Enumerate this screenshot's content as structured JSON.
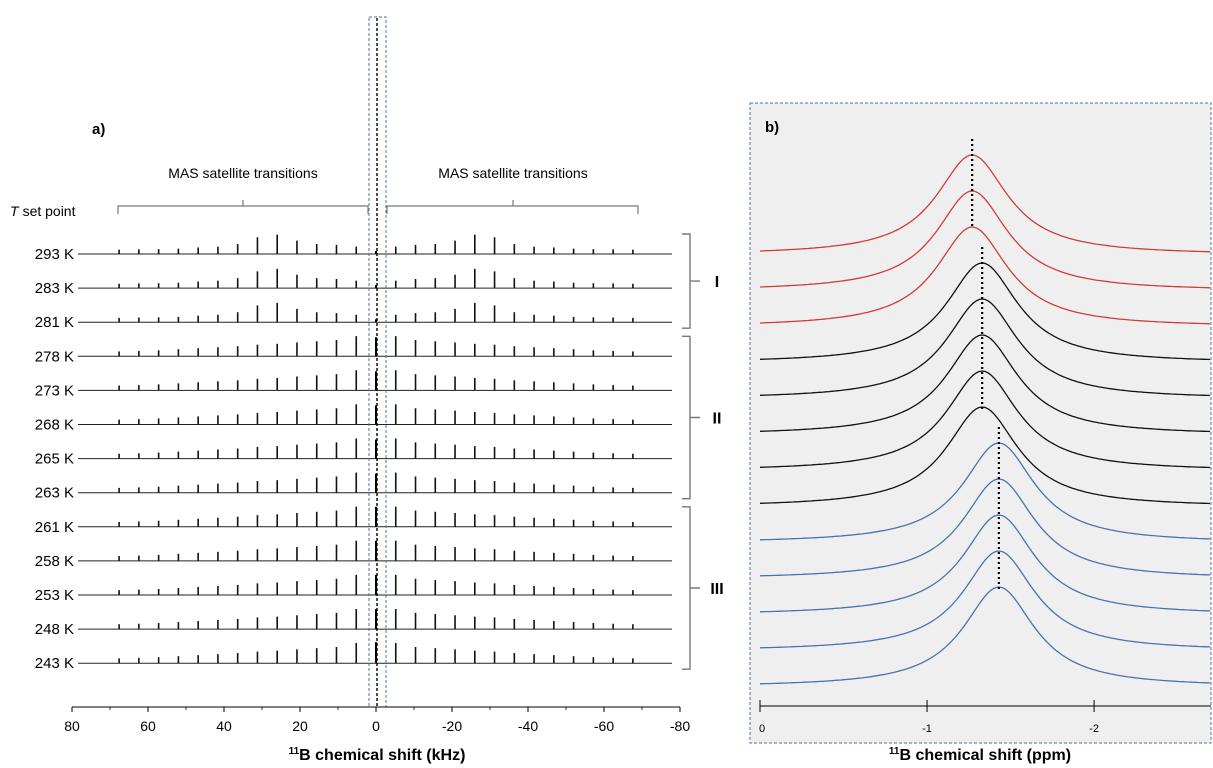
{
  "colors": {
    "group_I": "#d23b3b",
    "group_II": "#111111",
    "group_III": "#4a72b0",
    "panel_b_background": "#efefef",
    "highlight_box": "#4a74a8",
    "peak_guide": "#000000"
  },
  "chart_data": [
    {
      "panel": "a)",
      "type": "line",
      "subtype": "stacked NMR spectra",
      "row_header": "T set point",
      "xlabel_prefix": "11",
      "xlabel_main": "B chemical shift (kHz)",
      "xlim": [
        80,
        -80
      ],
      "xticks": [
        "80",
        "60",
        "40",
        "20",
        "0",
        "-20",
        "-40",
        "-60",
        "-80"
      ],
      "annotations": {
        "left_bracket": "MAS satellite transitions",
        "right_bracket": "MAS satellite transitions"
      },
      "temperatures": [
        "293 K",
        "283 K",
        "281 K",
        "278 K",
        "273 K",
        "268 K",
        "265 K",
        "263 K",
        "261 K",
        "258 K",
        "253 K",
        "248 K",
        "243 K"
      ],
      "regimes": [
        {
          "label": "I",
          "rows": [
            0,
            2
          ]
        },
        {
          "label": "II",
          "rows": [
            3,
            7
          ]
        },
        {
          "label": "III",
          "rows": [
            8,
            12
          ]
        }
      ],
      "sidebands_khz": [
        -67.6,
        -62.4,
        -57.2,
        -52.0,
        -46.8,
        -41.6,
        -36.4,
        -31.2,
        -26.0,
        -20.8,
        -15.6,
        -10.4,
        -5.2,
        5.2,
        10.4,
        15.6,
        20.8,
        26.0,
        31.2,
        36.4,
        41.6,
        46.8,
        52.0,
        57.2,
        62.4,
        67.6
      ],
      "relative_intensity_regime_I": [
        0.02,
        0.04,
        0.05,
        0.08,
        0.15,
        0.2,
        0.35,
        0.75,
        0.9,
        0.55,
        0.35,
        0.3,
        0.2,
        0.2,
        0.3,
        0.35,
        0.55,
        0.9,
        0.75,
        0.35,
        0.2,
        0.15,
        0.08,
        0.05,
        0.04,
        0.02
      ],
      "relative_intensity_regime_II_III": [
        0.05,
        0.08,
        0.12,
        0.18,
        0.24,
        0.3,
        0.36,
        0.45,
        0.5,
        0.58,
        0.65,
        0.72,
        0.95,
        0.95,
        0.72,
        0.65,
        0.58,
        0.5,
        0.45,
        0.36,
        0.3,
        0.24,
        0.18,
        0.12,
        0.08,
        0.05
      ],
      "center_peak_intensity": [
        0.05,
        0.05,
        0.05,
        0.9,
        0.9,
        0.9,
        0.9,
        0.9,
        0.95,
        0.95,
        0.95,
        0.95,
        1.0
      ]
    },
    {
      "panel": "b)",
      "type": "line",
      "subtype": "stacked NMR spectra (zoom of central transition)",
      "xlabel_prefix": "11",
      "xlabel_main": "B chemical shift (ppm)",
      "xlim": [
        0,
        -2.7
      ],
      "xticks": [
        "0",
        "-1",
        "-2"
      ],
      "temperatures": [
        "293 K",
        "283 K",
        "281 K",
        "278 K",
        "273 K",
        "268 K",
        "265 K",
        "263 K",
        "261 K",
        "258 K",
        "253 K",
        "248 K",
        "243 K"
      ],
      "peak_positions_ppm": [
        -1.27,
        -1.27,
        -1.27,
        -1.33,
        -1.33,
        -1.33,
        -1.33,
        -1.33,
        -1.43,
        -1.43,
        -1.43,
        -1.43,
        -1.43
      ],
      "series_group": [
        "I",
        "I",
        "I",
        "II",
        "II",
        "II",
        "II",
        "II",
        "III",
        "III",
        "III",
        "III",
        "III"
      ]
    }
  ]
}
